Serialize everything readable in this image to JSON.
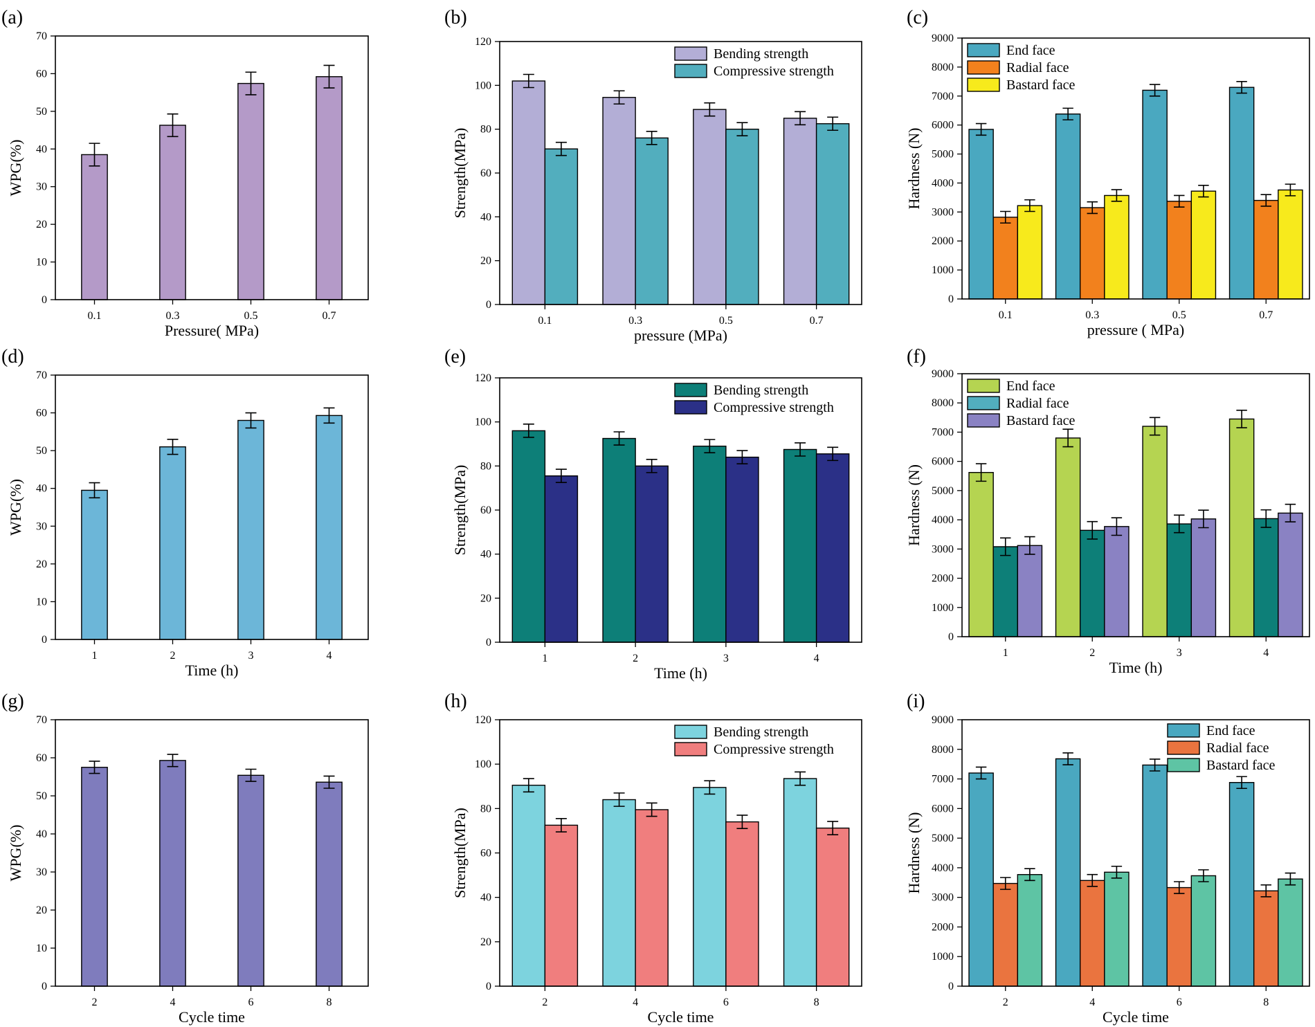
{
  "chart_data": [
    {
      "id": "a",
      "panel_label": "(a)",
      "type": "bar",
      "xlabel": "Pressure( MPa)",
      "ylabel": "WPG(%)",
      "ylim": [
        0,
        70
      ],
      "yticks": [
        0,
        10,
        20,
        30,
        40,
        50,
        60,
        70
      ],
      "categories": [
        "0.1",
        "0.3",
        "0.5",
        "0.7"
      ],
      "series": [
        {
          "name": "WPG",
          "color": "#b49ac8",
          "values": [
            38.5,
            46.3,
            57.4,
            59.2
          ],
          "errors": [
            3.0,
            3.0,
            3.0,
            3.0
          ]
        }
      ],
      "legend": null
    },
    {
      "id": "b",
      "panel_label": "(b)",
      "type": "bar",
      "xlabel": "pressure (MPa)",
      "ylabel": "Strength(MPa)",
      "ylim": [
        0,
        120
      ],
      "yticks": [
        0,
        20,
        40,
        60,
        80,
        100,
        120
      ],
      "categories": [
        "0.1",
        "0.3",
        "0.5",
        "0.7"
      ],
      "series": [
        {
          "name": "Bending strength",
          "color": "#b3aed6",
          "values": [
            102,
            94.5,
            89,
            85
          ],
          "errors": [
            3,
            3,
            3,
            3
          ]
        },
        {
          "name": "Compressive strength",
          "color": "#52aebe",
          "values": [
            71,
            76,
            80,
            82.5
          ],
          "errors": [
            3,
            3,
            3,
            3
          ]
        }
      ],
      "legend": "top-right"
    },
    {
      "id": "c",
      "panel_label": "(c)",
      "type": "bar",
      "xlabel": "pressure ( MPa)",
      "ylabel": "Hardness (N)",
      "ylim": [
        0,
        9000
      ],
      "yticks": [
        0,
        1000,
        2000,
        3000,
        4000,
        5000,
        6000,
        7000,
        8000,
        9000
      ],
      "categories": [
        "0.1",
        "0.3",
        "0.5",
        "0.7"
      ],
      "series": [
        {
          "name": "End face",
          "color": "#4aa8c0",
          "values": [
            5850,
            6380,
            7200,
            7300
          ],
          "errors": [
            200,
            200,
            200,
            200
          ]
        },
        {
          "name": "Radial face",
          "color": "#f2811d",
          "values": [
            2820,
            3150,
            3370,
            3400
          ],
          "errors": [
            200,
            200,
            200,
            200
          ]
        },
        {
          "name": "Bastard face",
          "color": "#f7ea1c",
          "values": [
            3220,
            3570,
            3720,
            3760
          ],
          "errors": [
            200,
            200,
            200,
            200
          ]
        }
      ],
      "legend": "top-left"
    },
    {
      "id": "d",
      "panel_label": "(d)",
      "type": "bar",
      "xlabel": "Time (h)",
      "ylabel": "WPG(%)",
      "ylim": [
        0,
        70
      ],
      "yticks": [
        0,
        10,
        20,
        30,
        40,
        50,
        60,
        70
      ],
      "categories": [
        "1",
        "2",
        "3",
        "4"
      ],
      "series": [
        {
          "name": "WPG",
          "color": "#6cb6d8",
          "values": [
            39.5,
            51,
            58,
            59.3
          ],
          "errors": [
            2,
            2,
            2,
            2
          ]
        }
      ],
      "legend": null
    },
    {
      "id": "e",
      "panel_label": "(e)",
      "type": "bar",
      "xlabel": "Time (h)",
      "ylabel": "Strength(MPa)",
      "ylim": [
        0,
        120
      ],
      "yticks": [
        0,
        20,
        40,
        60,
        80,
        100,
        120
      ],
      "categories": [
        "1",
        "2",
        "3",
        "4"
      ],
      "series": [
        {
          "name": "Bending strength",
          "color": "#0d7f78",
          "values": [
            96,
            92.5,
            89,
            87.5
          ],
          "errors": [
            3,
            3,
            3,
            3
          ]
        },
        {
          "name": "Compressive strength",
          "color": "#2b3087",
          "values": [
            75.5,
            80,
            84,
            85.5
          ],
          "errors": [
            3,
            3,
            3,
            3
          ]
        }
      ],
      "legend": "top-right"
    },
    {
      "id": "f",
      "panel_label": "(f)",
      "type": "bar",
      "xlabel": "Time (h)",
      "ylabel": "Hardness (N)",
      "ylim": [
        0,
        9000
      ],
      "yticks": [
        0,
        1000,
        2000,
        3000,
        4000,
        5000,
        6000,
        7000,
        8000,
        9000
      ],
      "categories": [
        "1",
        "2",
        "3",
        "4"
      ],
      "series": [
        {
          "name": "End face",
          "color": "#b5d451",
          "values": [
            5620,
            6800,
            7200,
            7450
          ],
          "errors": [
            300,
            300,
            300,
            300
          ]
        },
        {
          "name": "Radial face",
          "color": "#52aebe",
          "bar_color": "#0d7f78",
          "values": [
            3080,
            3640,
            3860,
            4040
          ],
          "errors": [
            300,
            300,
            300,
            300
          ]
        },
        {
          "name": "Bastard face",
          "color": "#8a82c3",
          "values": [
            3120,
            3770,
            4030,
            4230
          ],
          "errors": [
            300,
            300,
            300,
            300
          ]
        }
      ],
      "legend": "top-left"
    },
    {
      "id": "g",
      "panel_label": "(g)",
      "type": "bar",
      "xlabel": "Cycle time",
      "ylabel": "WPG(%)",
      "ylim": [
        0,
        70
      ],
      "yticks": [
        0,
        10,
        20,
        30,
        40,
        50,
        60,
        70
      ],
      "categories": [
        "2",
        "4",
        "6",
        "8"
      ],
      "series": [
        {
          "name": "WPG",
          "color": "#7f7cbd",
          "values": [
            57.5,
            59.3,
            55.4,
            53.6
          ],
          "errors": [
            1.6,
            1.6,
            1.6,
            1.6
          ]
        }
      ],
      "legend": null
    },
    {
      "id": "h",
      "panel_label": "(h)",
      "type": "bar",
      "xlabel": "Cycle time",
      "ylabel": "Strength(MPa)",
      "ylim": [
        0,
        120
      ],
      "yticks": [
        0,
        20,
        40,
        60,
        80,
        100,
        120
      ],
      "categories": [
        "2",
        "4",
        "6",
        "8"
      ],
      "series": [
        {
          "name": "Bending strength",
          "color": "#7dd3de",
          "values": [
            90.5,
            84,
            89.5,
            93.5
          ],
          "errors": [
            3,
            3,
            3,
            3
          ]
        },
        {
          "name": "Compressive strength",
          "color": "#f07e7e",
          "values": [
            72.5,
            79.5,
            74,
            71.2
          ],
          "errors": [
            3,
            3,
            3,
            3
          ]
        }
      ],
      "legend": "top-right"
    },
    {
      "id": "i",
      "panel_label": "(i)",
      "type": "bar",
      "xlabel": "Cycle time",
      "ylabel": "Hardness (N)",
      "ylim": [
        0,
        9000
      ],
      "yticks": [
        0,
        1000,
        2000,
        3000,
        4000,
        5000,
        6000,
        7000,
        8000,
        9000
      ],
      "categories": [
        "2",
        "4",
        "6",
        "8"
      ],
      "series": [
        {
          "name": "End face",
          "color": "#4aa8c0",
          "values": [
            7200,
            7680,
            7470,
            6880
          ],
          "errors": [
            200,
            200,
            200,
            200
          ]
        },
        {
          "name": "Radial face",
          "color": "#ea743f",
          "values": [
            3470,
            3570,
            3330,
            3220
          ],
          "errors": [
            200,
            200,
            200,
            200
          ]
        },
        {
          "name": "Bastard face",
          "color": "#5ec4a4",
          "values": [
            3770,
            3850,
            3730,
            3620
          ],
          "errors": [
            200,
            200,
            200,
            200
          ]
        }
      ],
      "legend": "top-right"
    }
  ]
}
